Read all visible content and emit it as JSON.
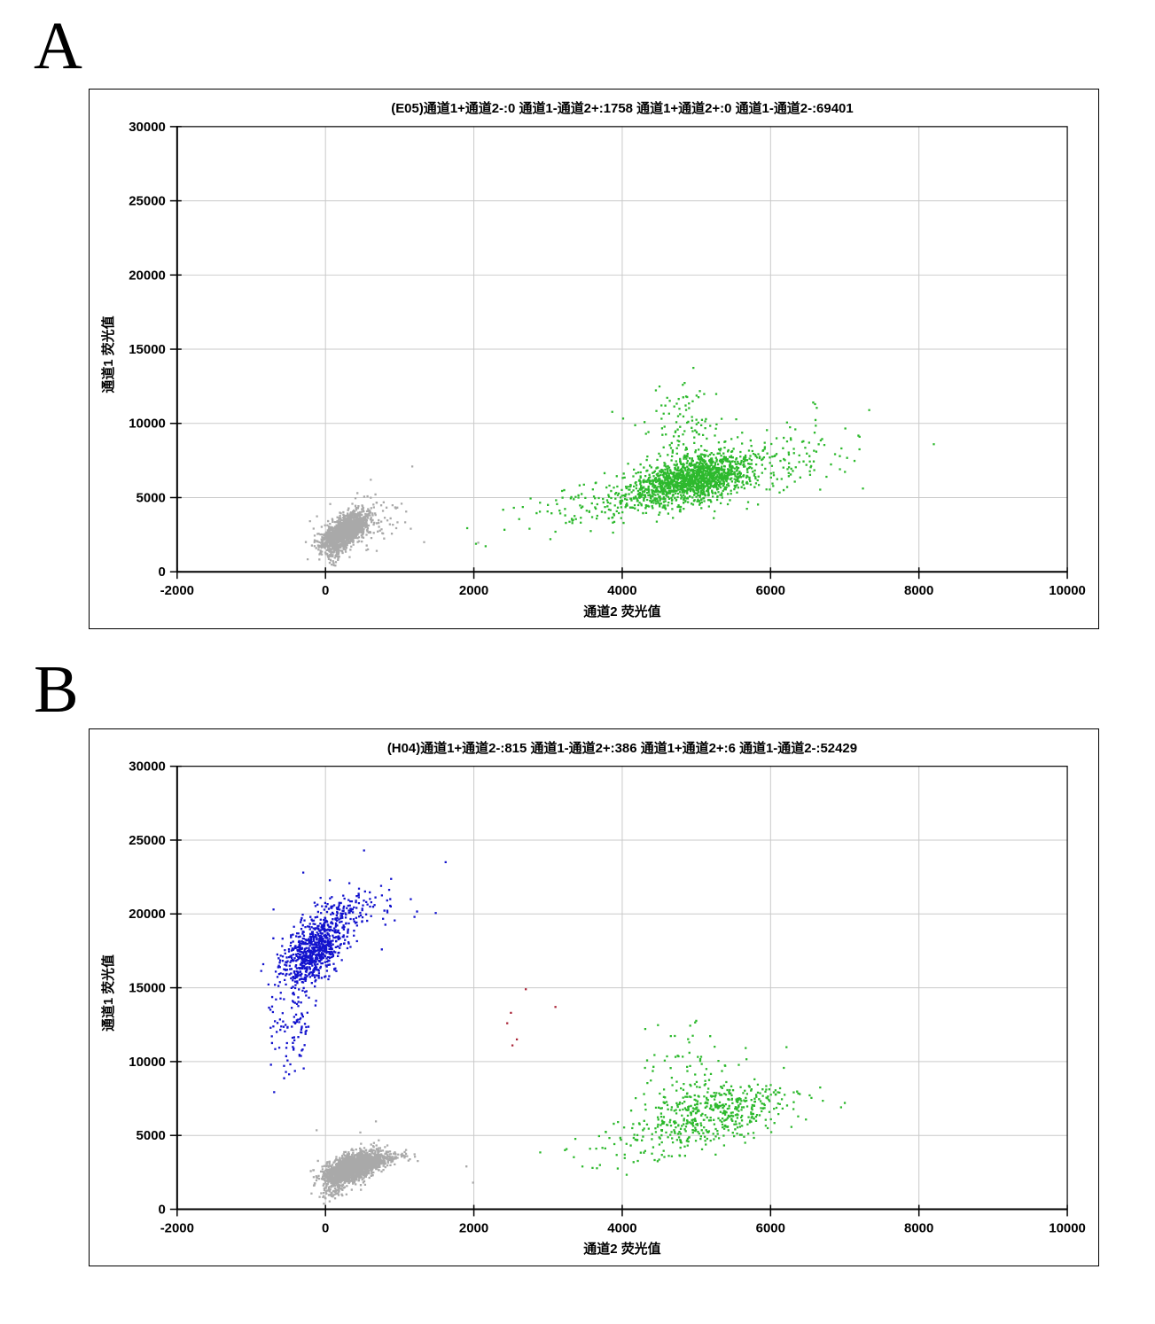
{
  "figure": {
    "background_color": "#ffffff",
    "panel_letters": [
      "A",
      "B"
    ]
  },
  "chart_data": [
    {
      "type": "scatter",
      "panel_label": "A",
      "well_id": "(E05)",
      "title": "(E05)通道1+通道2-:0   通道1-通道2+:1758   通道1+通道2+:0   通道1-通道2-:69401",
      "quadrant_stats": [
        {
          "label": "通道1+通道2-",
          "value": 0
        },
        {
          "label": "通道1-通道2+",
          "value": 1758
        },
        {
          "label": "通道1+通道2+",
          "value": 0
        },
        {
          "label": "通道1-通道2-",
          "value": 69401
        }
      ],
      "xlabel": "通道2  荧光值",
      "ylabel": "通道1  荧光值",
      "xlim": [
        -2000,
        10000
      ],
      "xtick_step": 2000,
      "ylim": [
        0,
        30000
      ],
      "ytick_step": 5000,
      "grid": true,
      "legend": "none",
      "colors": {
        "grid": "#c9c9c9",
        "axis": "#000000"
      },
      "series": [
        {
          "name": "negative-cells-gray",
          "color": "#a9a9a9",
          "clusters": [
            {
              "seed": 11,
              "count": 1600,
              "cx": 255,
              "cy": 2700,
              "sx": 150,
              "sy": 600,
              "corr": 0.65,
              "ymin": 380
            },
            {
              "seed": 12,
              "count": 140,
              "cx": 430,
              "cy": 3200,
              "sx": 280,
              "sy": 800,
              "corr": 0.35,
              "ymin": 380
            },
            {
              "seed": 13,
              "count": 60,
              "cx": 120,
              "cy": 1200,
              "sx": 80,
              "sy": 420,
              "corr": 0.3,
              "ymin": 380
            }
          ],
          "outliers": [
            [
              940,
              4340
            ],
            [
              1170,
              7100
            ],
            [
              610,
              6200
            ],
            [
              430,
              5300
            ],
            [
              1330,
              2000
            ],
            [
              2060,
              1960
            ],
            [
              1150,
              2900
            ]
          ]
        },
        {
          "name": "channel2-positive-cells-green",
          "color": "#2db92d",
          "clusters": [
            {
              "seed": 21,
              "count": 1400,
              "cx": 4950,
              "cy": 6300,
              "sx": 420,
              "sy": 850,
              "corr": 0.5
            },
            {
              "seed": 22,
              "count": 120,
              "cx": 4800,
              "cy": 9800,
              "sx": 300,
              "sy": 1400,
              "corr": 0.0
            },
            {
              "seed": 23,
              "count": 300,
              "cx": 4350,
              "cy": 4900,
              "sx": 850,
              "sy": 950,
              "corr": 0.6
            },
            {
              "seed": 24,
              "count": 70,
              "cx": 6400,
              "cy": 7900,
              "sx": 420,
              "sy": 1100,
              "corr": 0.2
            }
          ],
          "outliers": [
            [
              8200,
              8600
            ],
            [
              7200,
              9100
            ],
            [
              6600,
              11300
            ],
            [
              3100,
              2700
            ],
            [
              2750,
              2900
            ]
          ]
        }
      ]
    },
    {
      "type": "scatter",
      "panel_label": "B",
      "well_id": "(H04)",
      "title": "(H04)通道1+通道2-:815   通道1-通道2+:386   通道1+通道2+:6   通道1-通道2-:52429",
      "quadrant_stats": [
        {
          "label": "通道1+通道2-",
          "value": 815
        },
        {
          "label": "通道1-通道2+",
          "value": 386
        },
        {
          "label": "通道1+通道2+",
          "value": 6
        },
        {
          "label": "通道1-通道2-",
          "value": 52429
        }
      ],
      "xlabel": "通道2  荧光值",
      "ylabel": "通道1  荧光值",
      "xlim": [
        -2000,
        10000
      ],
      "xtick_step": 2000,
      "ylim": [
        0,
        30000
      ],
      "ytick_step": 5000,
      "grid": true,
      "legend": "none",
      "colors": {
        "grid": "#c9c9c9",
        "axis": "#000000"
      },
      "series": [
        {
          "name": "channel1-positive-cells-blue",
          "color": "#1212cd",
          "clusters": [
            {
              "seed": 31,
              "count": 750,
              "cx": -140,
              "cy": 17600,
              "sx": 220,
              "sy": 1250,
              "corr": 0.55
            },
            {
              "seed": 32,
              "count": 120,
              "cx": 300,
              "cy": 20200,
              "sx": 320,
              "sy": 900,
              "corr": 0.5
            },
            {
              "seed": 33,
              "count": 110,
              "cx": -430,
              "cy": 12800,
              "sx": 150,
              "sy": 1900,
              "corr": 0.15
            }
          ],
          "outliers": [
            [
              520,
              24300
            ],
            [
              1620,
              23500
            ],
            [
              -300,
              22800
            ],
            [
              750,
              21900
            ],
            [
              1150,
              21000
            ],
            [
              880,
              20500
            ],
            [
              1200,
              19800
            ],
            [
              -700,
              20300
            ],
            [
              760,
              17600
            ]
          ]
        },
        {
          "name": "negative-cells-gray",
          "color": "#a9a9a9",
          "clusters": [
            {
              "seed": 41,
              "count": 2000,
              "cx": 360,
              "cy": 2800,
              "sx": 180,
              "sy": 520,
              "corr": 0.55,
              "ymin": 380
            },
            {
              "seed": 42,
              "count": 180,
              "cx": 720,
              "cy": 3350,
              "sx": 200,
              "sy": 280,
              "corr": 0.6
            },
            {
              "seed": 43,
              "count": 80,
              "cx": 130,
              "cy": 1300,
              "sx": 100,
              "sy": 500,
              "corr": 0.5,
              "ymin": 380
            }
          ],
          "outliers": [
            [
              680,
              5950
            ],
            [
              470,
              5200
            ],
            [
              -120,
              5350
            ],
            [
              1900,
              2900
            ],
            [
              1990,
              1800
            ]
          ]
        },
        {
          "name": "channel2-positive-cells-green",
          "color": "#2db92d",
          "clusters": [
            {
              "seed": 51,
              "count": 420,
              "cx": 5250,
              "cy": 6600,
              "sx": 500,
              "sy": 950,
              "corr": 0.35
            },
            {
              "seed": 52,
              "count": 60,
              "cx": 5050,
              "cy": 10000,
              "sx": 350,
              "sy": 1500,
              "corr": 0.0
            },
            {
              "seed": 53,
              "count": 130,
              "cx": 4650,
              "cy": 4800,
              "sx": 650,
              "sy": 850,
              "corr": 0.55
            }
          ],
          "outliers": [
            [
              7000,
              7200
            ],
            [
              6950,
              6900
            ],
            [
              3600,
              2800
            ],
            [
              3700,
              3000
            ]
          ]
        },
        {
          "name": "double-positive-cells-red",
          "color": "#aa2538",
          "clusters": [],
          "outliers": [
            [
              2700,
              14900
            ],
            [
              2500,
              13300
            ],
            [
              2450,
              12600
            ],
            [
              3100,
              13700
            ],
            [
              2580,
              11500
            ],
            [
              2520,
              11100
            ]
          ]
        }
      ]
    }
  ]
}
